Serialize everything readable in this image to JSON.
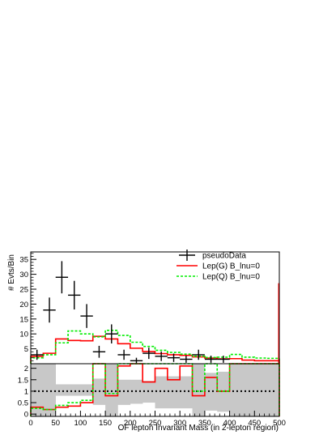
{
  "chart_data": [
    {
      "type": "line",
      "panel": "main",
      "xlabel": "",
      "ylabel": "# Evts/Bin",
      "xlim": [
        0,
        500
      ],
      "ylim": [
        0,
        37.5
      ],
      "y_ticks": [
        5,
        10,
        15,
        20,
        25,
        30,
        35
      ],
      "grid": false,
      "legend_position": "top-right",
      "bin_edges": [
        0,
        25,
        50,
        75,
        100,
        125,
        150,
        175,
        200,
        225,
        250,
        275,
        300,
        325,
        350,
        375,
        400,
        425,
        450,
        475,
        500
      ],
      "series": [
        {
          "name": "pseudoData",
          "style": "points-with-errors",
          "color": "#000000",
          "x": [
            12.5,
            37.5,
            62.5,
            87.5,
            112.5,
            137.5,
            162.5,
            187.5,
            212.5,
            237.5,
            262.5,
            287.5,
            312.5,
            337.5,
            362.5,
            387.5
          ],
          "y": [
            3,
            18,
            29,
            23,
            16,
            4,
            10,
            3,
            1,
            3.5,
            2.5,
            2,
            1.5,
            3,
            1.5,
            1.5
          ],
          "yerr": [
            1.7,
            4.2,
            5.4,
            4.8,
            4.0,
            2.0,
            3.2,
            1.7,
            1.0,
            1.9,
            1.6,
            1.4,
            1.2,
            1.7,
            1.2,
            1.2
          ]
        },
        {
          "name": "Lep(G) B_lnu=0",
          "style": "histogram",
          "color": "#ff0000",
          "values": [
            2.5,
            3.5,
            8.3,
            7.8,
            7.7,
            9.2,
            8.3,
            6.7,
            5.2,
            4.1,
            3.4,
            3.0,
            2.8,
            2.3,
            1.9,
            1.6,
            1.7,
            1.2,
            1.0,
            1.0
          ]
        },
        {
          "name": "Lep(Q) B_lnu=0",
          "style": "histogram-dashed",
          "color": "#00ee00",
          "values": [
            2.0,
            3.0,
            7.0,
            11.0,
            10.0,
            9.0,
            11.2,
            9.5,
            7.2,
            5.8,
            4.5,
            3.8,
            3.2,
            2.5,
            2.1,
            2.2,
            3.1,
            2.2,
            1.9,
            1.8
          ]
        }
      ]
    },
    {
      "type": "line",
      "panel": "ratio",
      "xlabel": "OF lepton Invariant Mass (in 2-lepton region)",
      "ylabel": "",
      "xlim": [
        0,
        500
      ],
      "ylim": [
        -0.1,
        2.2
      ],
      "y_ticks": [
        0,
        0.5,
        1,
        1.5,
        2
      ],
      "x_ticks": [
        0,
        50,
        100,
        150,
        200,
        250,
        300,
        350,
        400,
        450,
        500
      ],
      "reference_line": 1,
      "bin_edges": [
        0,
        25,
        50,
        75,
        100,
        125,
        150,
        175,
        200,
        225,
        250,
        275,
        300,
        325,
        350,
        375,
        400,
        425,
        450,
        475,
        500
      ],
      "band": {
        "color": "#c8c8c8",
        "low": [
          -0.1,
          -0.1,
          0.8,
          0.8,
          0.8,
          0.4,
          -0.1,
          0.4,
          0.45,
          0.5,
          0.25,
          0.25,
          0.25,
          -0.1,
          0.15,
          0.1,
          -0.1,
          -0.1,
          -0.1,
          -0.1
        ],
        "high": [
          2.2,
          2.2,
          1.3,
          1.3,
          1.3,
          1.55,
          2.2,
          1.5,
          1.5,
          1.45,
          1.65,
          1.65,
          1.65,
          2.2,
          1.8,
          1.85,
          2.2,
          2.2,
          2.2,
          2.2
        ]
      },
      "series": [
        {
          "name": "Lep(G) B_lnu=0",
          "style": "histogram",
          "color": "#ff0000",
          "values": [
            0.3,
            0.2,
            0.3,
            0.35,
            0.5,
            2.2,
            0.8,
            2.1,
            2.2,
            1.4,
            2.0,
            1.5,
            2.1,
            0.8,
            1.6,
            1.0,
            2.2,
            2.2,
            2.2,
            2.2
          ]
        },
        {
          "name": "Lep(Q) B_lnu=0",
          "style": "histogram-dashed",
          "color": "#00ee00",
          "values": [
            0.25,
            0.2,
            0.38,
            0.5,
            0.6,
            2.2,
            0.9,
            2.2,
            2.2,
            2.2,
            2.2,
            2.2,
            2.2,
            1.0,
            2.2,
            1.0,
            2.2,
            2.2,
            2.2,
            2.2
          ]
        }
      ]
    }
  ]
}
